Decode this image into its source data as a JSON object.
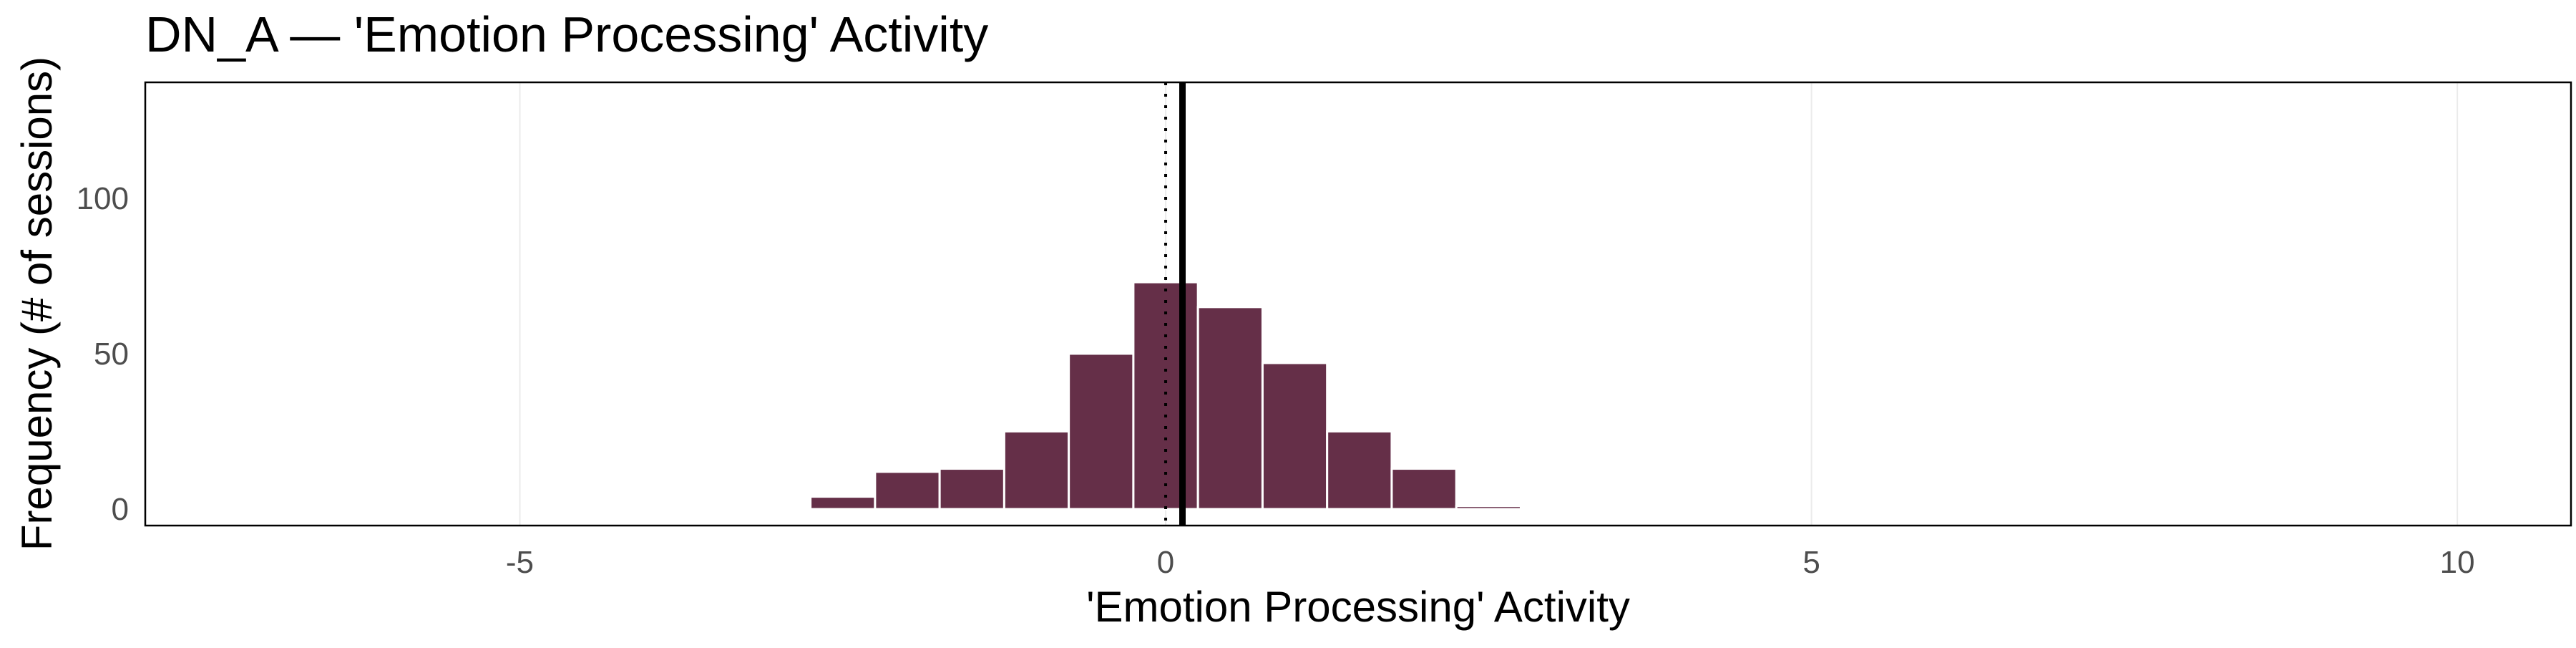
{
  "chart_data": {
    "type": "bar",
    "title": "DN_A — 'Emotion Processing' Activity",
    "xlabel": "'Emotion Processing' Activity",
    "ylabel": "Frequency (# of sessions)",
    "bin_width": 0.5,
    "bin_centers": [
      -2.5,
      -2,
      -1.5,
      -1,
      -0.5,
      0,
      0.5,
      1,
      1.5,
      2,
      2.5
    ],
    "values": [
      4,
      12,
      13,
      25,
      50,
      73,
      65,
      47,
      25,
      13,
      1
    ],
    "xlim": [
      -7.9,
      10.88
    ],
    "ylim": [
      -5.3,
      137.3
    ],
    "x_ticks": [
      -5,
      0,
      5,
      10
    ],
    "x_tick_labels": [
      "-5",
      "0",
      "5",
      "10"
    ],
    "y_ticks": [
      0,
      50,
      100
    ],
    "y_tick_labels": [
      "0",
      "50",
      "100"
    ],
    "vlines": [
      {
        "x": 0,
        "style": "dotted"
      },
      {
        "x": 0.13,
        "style": "solid"
      }
    ],
    "grid": "vertical major gridlines only",
    "bar_color": "#652f48",
    "bar_outline": "#ffffff"
  }
}
